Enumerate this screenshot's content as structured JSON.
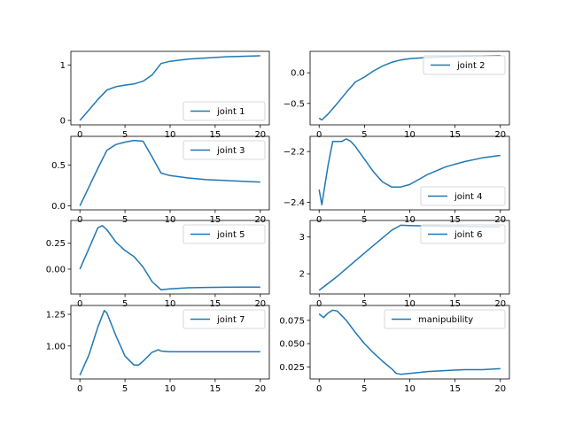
{
  "chart_data": [
    {
      "type": "line",
      "series": [
        {
          "name": "joint 1",
          "color": "#1f77b4",
          "x": [
            0,
            1,
            2,
            3,
            4,
            5,
            6,
            7,
            8,
            9,
            10,
            12,
            14,
            16,
            18,
            20
          ],
          "y": [
            0,
            0.19,
            0.38,
            0.55,
            0.61,
            0.64,
            0.66,
            0.71,
            0.82,
            1.03,
            1.07,
            1.11,
            1.13,
            1.15,
            1.16,
            1.17
          ]
        }
      ],
      "xlim": [
        -1,
        21
      ],
      "ylim": [
        -0.08,
        1.25
      ],
      "xticks": [
        {
          "v": 0,
          "label": "0"
        },
        {
          "v": 5,
          "label": "5"
        },
        {
          "v": 10,
          "label": "10"
        },
        {
          "v": 15,
          "label": "15"
        },
        {
          "v": 20,
          "label": "20"
        }
      ],
      "yticks": [
        {
          "v": 0,
          "label": "0"
        },
        {
          "v": 1,
          "label": "1"
        }
      ],
      "legend_loc": "lower-right"
    },
    {
      "type": "line",
      "series": [
        {
          "name": "joint 2",
          "color": "#1f77b4",
          "x": [
            0,
            0.3,
            1,
            2,
            3,
            4,
            5,
            6,
            7,
            8,
            9,
            10,
            12,
            14,
            16,
            18,
            20
          ],
          "y": [
            -0.74,
            -0.77,
            -0.67,
            -0.5,
            -0.32,
            -0.15,
            -0.07,
            0.03,
            0.11,
            0.17,
            0.21,
            0.23,
            0.25,
            0.26,
            0.27,
            0.275,
            0.28
          ]
        }
      ],
      "xlim": [
        -1,
        21
      ],
      "ylim": [
        -0.85,
        0.35
      ],
      "xticks": [
        {
          "v": 0,
          "label": "0"
        },
        {
          "v": 5,
          "label": "5"
        },
        {
          "v": 10,
          "label": "10"
        },
        {
          "v": 15,
          "label": "15"
        },
        {
          "v": 20,
          "label": "20"
        }
      ],
      "yticks": [
        {
          "v": -0.5,
          "label": "−0.5"
        },
        {
          "v": 0,
          "label": "0.0"
        }
      ],
      "legend_loc": "upper-right"
    },
    {
      "type": "line",
      "series": [
        {
          "name": "joint 3",
          "color": "#1f77b4",
          "x": [
            0,
            1,
            2,
            3,
            4,
            5,
            6,
            7,
            8,
            9,
            10,
            12,
            14,
            16,
            18,
            20
          ],
          "y": [
            0,
            0.23,
            0.46,
            0.68,
            0.75,
            0.78,
            0.8,
            0.79,
            0.6,
            0.4,
            0.37,
            0.34,
            0.32,
            0.31,
            0.3,
            0.29
          ]
        }
      ],
      "xlim": [
        -1,
        21
      ],
      "ylim": [
        -0.05,
        0.85
      ],
      "xticks": [
        {
          "v": 0,
          "label": "0"
        },
        {
          "v": 5,
          "label": "5"
        },
        {
          "v": 10,
          "label": "10"
        },
        {
          "v": 15,
          "label": "15"
        },
        {
          "v": 20,
          "label": "20"
        }
      ],
      "yticks": [
        {
          "v": 0,
          "label": "0.0"
        },
        {
          "v": 0.5,
          "label": "0.5"
        }
      ],
      "legend_loc": "upper-right"
    },
    {
      "type": "line",
      "series": [
        {
          "name": "joint 4",
          "color": "#1f77b4",
          "x": [
            0,
            0.3,
            0.6,
            1,
            1.5,
            2,
            2.5,
            3,
            3.5,
            4,
            5,
            6,
            7,
            8,
            9,
            10,
            12,
            14,
            16,
            18,
            20
          ],
          "y": [
            -2.35,
            -2.41,
            -2.34,
            -2.25,
            -2.16,
            -2.16,
            -2.16,
            -2.15,
            -2.16,
            -2.18,
            -2.23,
            -2.28,
            -2.32,
            -2.34,
            -2.34,
            -2.33,
            -2.29,
            -2.26,
            -2.24,
            -2.225,
            -2.215
          ]
        }
      ],
      "xlim": [
        -1,
        21
      ],
      "ylim": [
        -2.43,
        -2.14
      ],
      "xticks": [
        {
          "v": 0,
          "label": "0"
        },
        {
          "v": 5,
          "label": "5"
        },
        {
          "v": 10,
          "label": "10"
        },
        {
          "v": 15,
          "label": "15"
        },
        {
          "v": 20,
          "label": "20"
        }
      ],
      "yticks": [
        {
          "v": -2.4,
          "label": "−2.4"
        },
        {
          "v": -2.2,
          "label": "−2.2"
        }
      ],
      "legend_loc": "lower-right"
    },
    {
      "type": "line",
      "series": [
        {
          "name": "joint 5",
          "color": "#1f77b4",
          "x": [
            0,
            1,
            2,
            2.5,
            3,
            4,
            5,
            6,
            7,
            8,
            9,
            10,
            12,
            14,
            16,
            18,
            20
          ],
          "y": [
            0,
            0.2,
            0.4,
            0.42,
            0.38,
            0.26,
            0.18,
            0.12,
            0.02,
            -0.12,
            -0.2,
            -0.19,
            -0.18,
            -0.177,
            -0.175,
            -0.174,
            -0.173
          ]
        }
      ],
      "xlim": [
        -1,
        21
      ],
      "ylim": [
        -0.24,
        0.47
      ],
      "xticks": [
        {
          "v": 0,
          "label": "0"
        },
        {
          "v": 5,
          "label": "5"
        },
        {
          "v": 10,
          "label": "10"
        },
        {
          "v": 15,
          "label": "15"
        },
        {
          "v": 20,
          "label": "20"
        }
      ],
      "yticks": [
        {
          "v": 0,
          "label": "0.00"
        },
        {
          "v": 0.25,
          "label": "0.25"
        }
      ],
      "legend_loc": "upper-right"
    },
    {
      "type": "line",
      "series": [
        {
          "name": "joint 6",
          "color": "#1f77b4",
          "x": [
            0,
            2,
            4,
            6,
            8,
            9,
            10,
            12,
            14,
            16,
            18,
            20
          ],
          "y": [
            1.55,
            1.93,
            2.35,
            2.77,
            3.18,
            3.32,
            3.31,
            3.3,
            3.29,
            3.29,
            3.28,
            3.28
          ]
        }
      ],
      "xlim": [
        -1,
        21
      ],
      "ylim": [
        1.45,
        3.45
      ],
      "xticks": [
        {
          "v": 0,
          "label": "0"
        },
        {
          "v": 5,
          "label": "5"
        },
        {
          "v": 10,
          "label": "10"
        },
        {
          "v": 15,
          "label": "15"
        },
        {
          "v": 20,
          "label": "20"
        }
      ],
      "yticks": [
        {
          "v": 2,
          "label": "2"
        },
        {
          "v": 3,
          "label": "3"
        }
      ],
      "legend_loc": "upper-right"
    },
    {
      "type": "line",
      "series": [
        {
          "name": "joint 7",
          "color": "#1f77b4",
          "x": [
            0,
            1,
            2,
            2.7,
            3,
            4,
            5,
            6,
            6.5,
            7,
            8,
            8.7,
            9,
            10,
            12,
            14,
            16,
            18,
            20
          ],
          "y": [
            0.77,
            0.93,
            1.15,
            1.28,
            1.26,
            1.08,
            0.92,
            0.85,
            0.85,
            0.88,
            0.95,
            0.97,
            0.96,
            0.955,
            0.955,
            0.955,
            0.955,
            0.955,
            0.955
          ]
        }
      ],
      "xlim": [
        -1,
        21
      ],
      "ylim": [
        0.74,
        1.32
      ],
      "xticks": [
        {
          "v": 0,
          "label": "0"
        },
        {
          "v": 5,
          "label": "5"
        },
        {
          "v": 10,
          "label": "10"
        },
        {
          "v": 15,
          "label": "15"
        },
        {
          "v": 20,
          "label": "20"
        }
      ],
      "yticks": [
        {
          "v": 1.0,
          "label": "1.00"
        },
        {
          "v": 1.25,
          "label": "1.25"
        }
      ],
      "legend_loc": "upper-right"
    },
    {
      "type": "line",
      "series": [
        {
          "name": "manipubility",
          "color": "#1f77b4",
          "x": [
            0,
            0.5,
            1,
            1.5,
            2,
            3,
            4,
            5,
            6,
            7,
            8,
            8.5,
            9,
            10,
            12,
            14,
            16,
            18,
            20
          ],
          "y": [
            0.082,
            0.078,
            0.083,
            0.086,
            0.085,
            0.075,
            0.062,
            0.05,
            0.04,
            0.031,
            0.023,
            0.018,
            0.017,
            0.018,
            0.02,
            0.021,
            0.022,
            0.022,
            0.023
          ]
        }
      ],
      "xlim": [
        -1,
        21
      ],
      "ylim": [
        0.012,
        0.091
      ],
      "xticks": [
        {
          "v": 0,
          "label": "0"
        },
        {
          "v": 5,
          "label": "5"
        },
        {
          "v": 10,
          "label": "10"
        },
        {
          "v": 15,
          "label": "15"
        },
        {
          "v": 20,
          "label": "20"
        }
      ],
      "yticks": [
        {
          "v": 0.025,
          "label": "0.025"
        },
        {
          "v": 0.05,
          "label": "0.050"
        },
        {
          "v": 0.075,
          "label": "0.075"
        }
      ],
      "legend_loc": "upper-right"
    }
  ]
}
